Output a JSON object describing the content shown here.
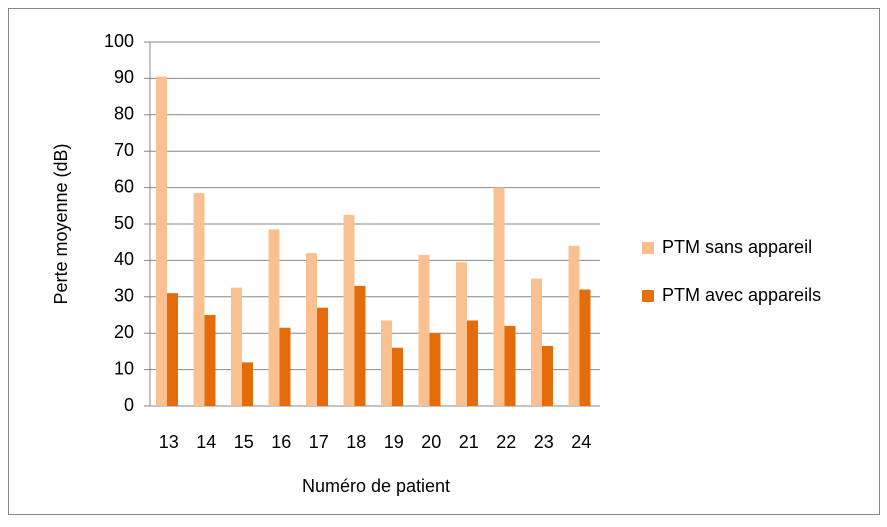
{
  "chart_data": {
    "type": "bar",
    "x_label": "Numéro de patient",
    "y_label": "Perte moyenne (dB)",
    "categories": [
      "13",
      "14",
      "15",
      "16",
      "17",
      "18",
      "19",
      "20",
      "21",
      "22",
      "23",
      "24"
    ],
    "series": [
      {
        "name": "PTM sans appareil",
        "color": "#fac090",
        "values": [
          90.5,
          58.5,
          32.5,
          48.5,
          42,
          52.5,
          23.5,
          41.5,
          39.5,
          60,
          35,
          44
        ]
      },
      {
        "name": "PTM avec appareils",
        "color": "#e46c0a",
        "values": [
          31,
          25,
          12,
          21.5,
          27,
          33,
          16,
          20,
          23.5,
          22,
          16.5,
          32
        ]
      }
    ],
    "ylim": [
      0,
      100
    ],
    "yticks": [
      0,
      10,
      20,
      30,
      40,
      50,
      60,
      70,
      80,
      90,
      100
    ],
    "grid": true,
    "legend": "right"
  }
}
